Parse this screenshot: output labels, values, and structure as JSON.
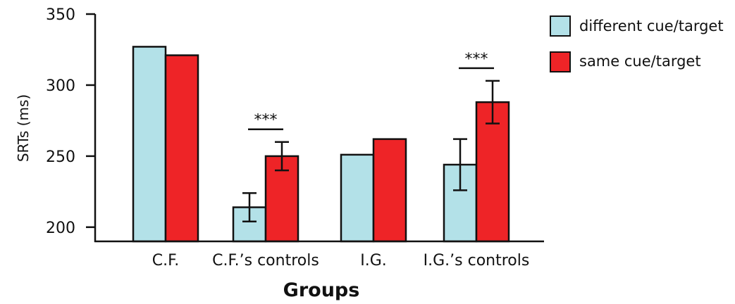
{
  "chart_data": {
    "type": "bar",
    "xlabel": "Groups",
    "ylabel": "SRTs (ms)",
    "ylim": [
      190,
      350
    ],
    "yticks": [
      200,
      250,
      300,
      350
    ],
    "categories": [
      "C.F.",
      "C.F.’s controls",
      "I.G.",
      "I.G.’s controls"
    ],
    "series": [
      {
        "name": "different cue/target",
        "color": "#b3e1e8",
        "values": [
          327,
          214,
          251,
          244
        ],
        "errors": [
          null,
          10,
          null,
          18
        ]
      },
      {
        "name": "same cue/target",
        "color": "#ee2427",
        "values": [
          321,
          250,
          262,
          288
        ],
        "errors": [
          null,
          10,
          null,
          15
        ]
      }
    ],
    "annotations": [
      {
        "category_index": 1,
        "text": "***"
      },
      {
        "category_index": 3,
        "text": "***"
      }
    ],
    "legend_position": "top-right",
    "grid": false
  }
}
